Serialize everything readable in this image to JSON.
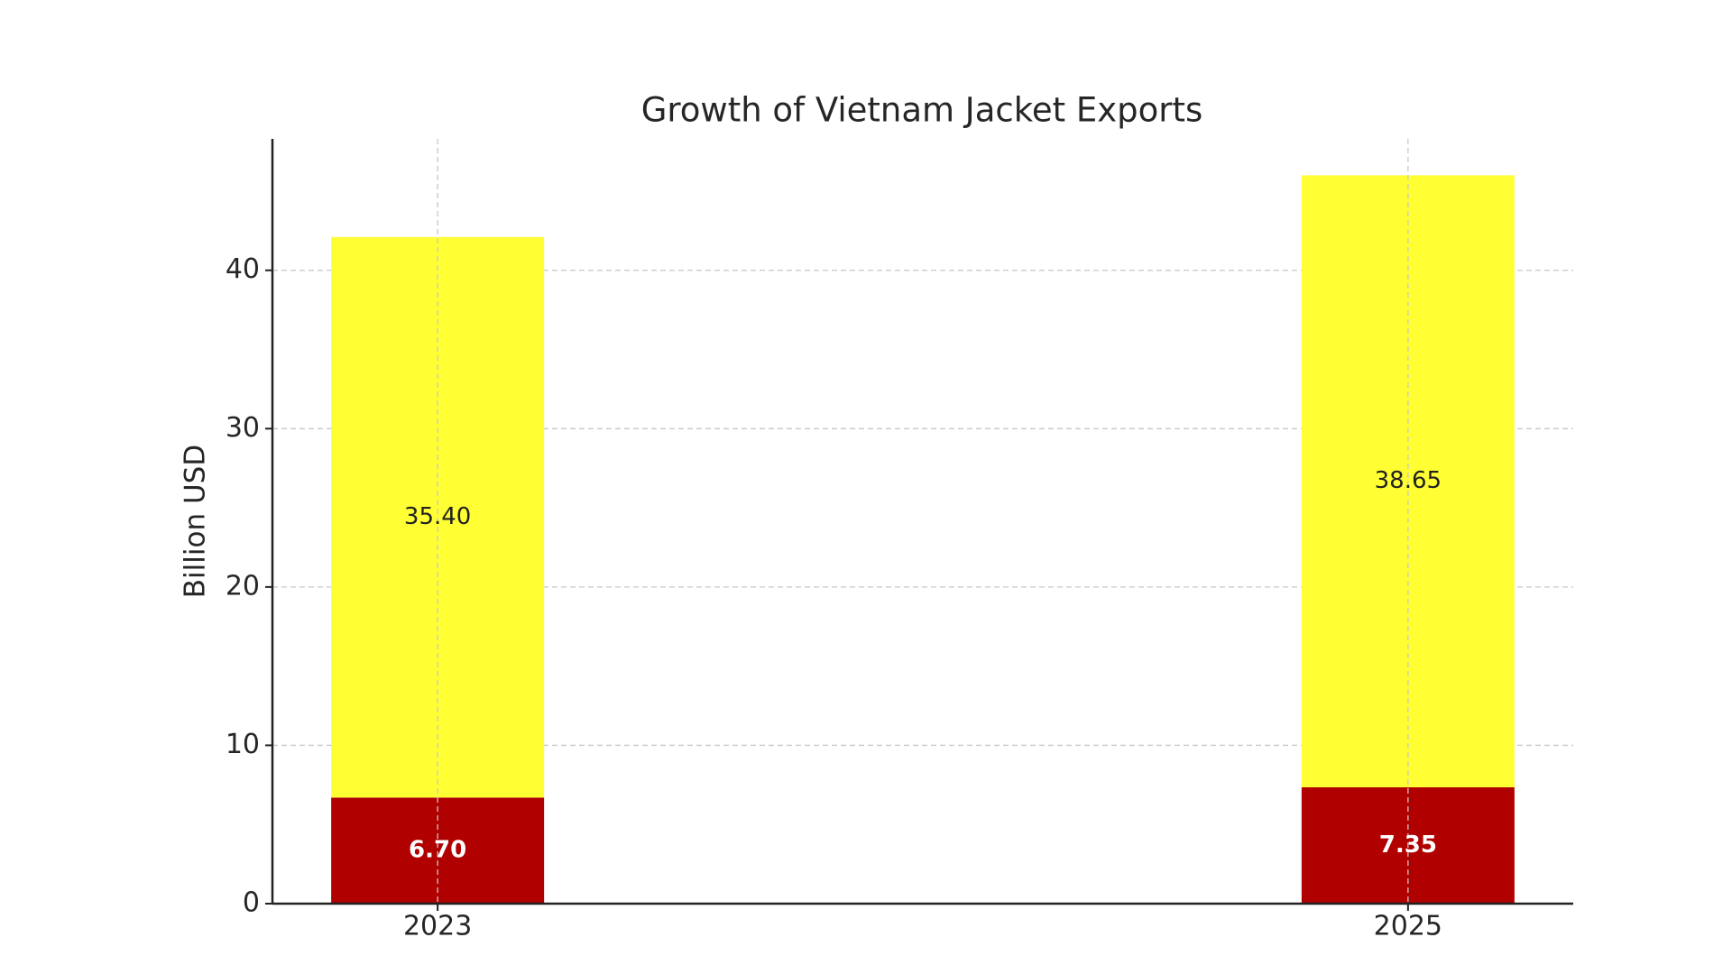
{
  "chart_data": {
    "type": "stacked_bar",
    "title": "Growth of Vietnam Jacket Exports",
    "y_label": "Billion USD",
    "categories": [
      "2023",
      "2025"
    ],
    "series": [
      {
        "color": "#b00000",
        "values": [
          6.7,
          7.35
        ],
        "value_labels": [
          "6.70",
          "7.35"
        ],
        "label_color": "#ffffff"
      },
      {
        "color": "#ffff33",
        "values": [
          35.4,
          38.65
        ],
        "value_labels": [
          "35.40",
          "38.65"
        ],
        "label_color": "#222222"
      }
    ],
    "ylim": [
      0,
      48.3
    ],
    "yticks": [
      0,
      10,
      20,
      30,
      40
    ],
    "grid": true
  }
}
